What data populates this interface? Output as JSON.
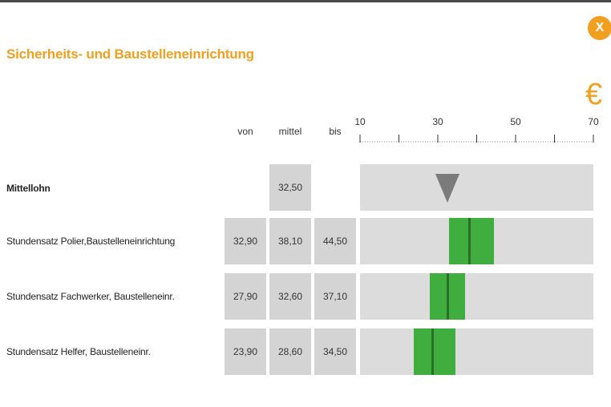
{
  "window": {
    "title": "Sicherheits- und Baustelleneinrichtung",
    "close_label": "X",
    "currency_symbol": "€"
  },
  "columns": {
    "von": "von",
    "mittel": "mittel",
    "bis": "bis"
  },
  "axis": {
    "min": 10,
    "max": 70,
    "tick_step": 10,
    "labeled_ticks": [
      10,
      30,
      50,
      70
    ],
    "tick_labels": [
      "10",
      "30",
      "50",
      "70"
    ],
    "minor_ticks": true
  },
  "reference": {
    "label": "Mittellohn",
    "mittel": "32,50",
    "marker_value": 32.5
  },
  "rows": [
    {
      "label": "Stundensatz Polier,Baustelleneinrichtung",
      "von": "32,90",
      "mittel": "38,10",
      "bis": "44,50",
      "von_value": 32.9,
      "mittel_value": 38.1,
      "bis_value": 44.5
    },
    {
      "label": "Stundensatz Fachwerker, Baustelleneinr.",
      "von": "27,90",
      "mittel": "32,60",
      "bis": "37,10",
      "von_value": 27.9,
      "mittel_value": 32.6,
      "bis_value": 37.1
    },
    {
      "label": "Stundensatz Helfer, Baustelleneinr.",
      "von": "23,90",
      "mittel": "28,60",
      "bis": "34,50",
      "von_value": 23.9,
      "mittel_value": 28.6,
      "bis_value": 34.5
    }
  ],
  "colors": {
    "accent": "#f0a01e",
    "range_bar": "#3fae3f",
    "median_line": "#2a6e2a",
    "marker": "#7b7b7b",
    "track": "#dcdcdc",
    "cell": "#d4d4d4"
  }
}
